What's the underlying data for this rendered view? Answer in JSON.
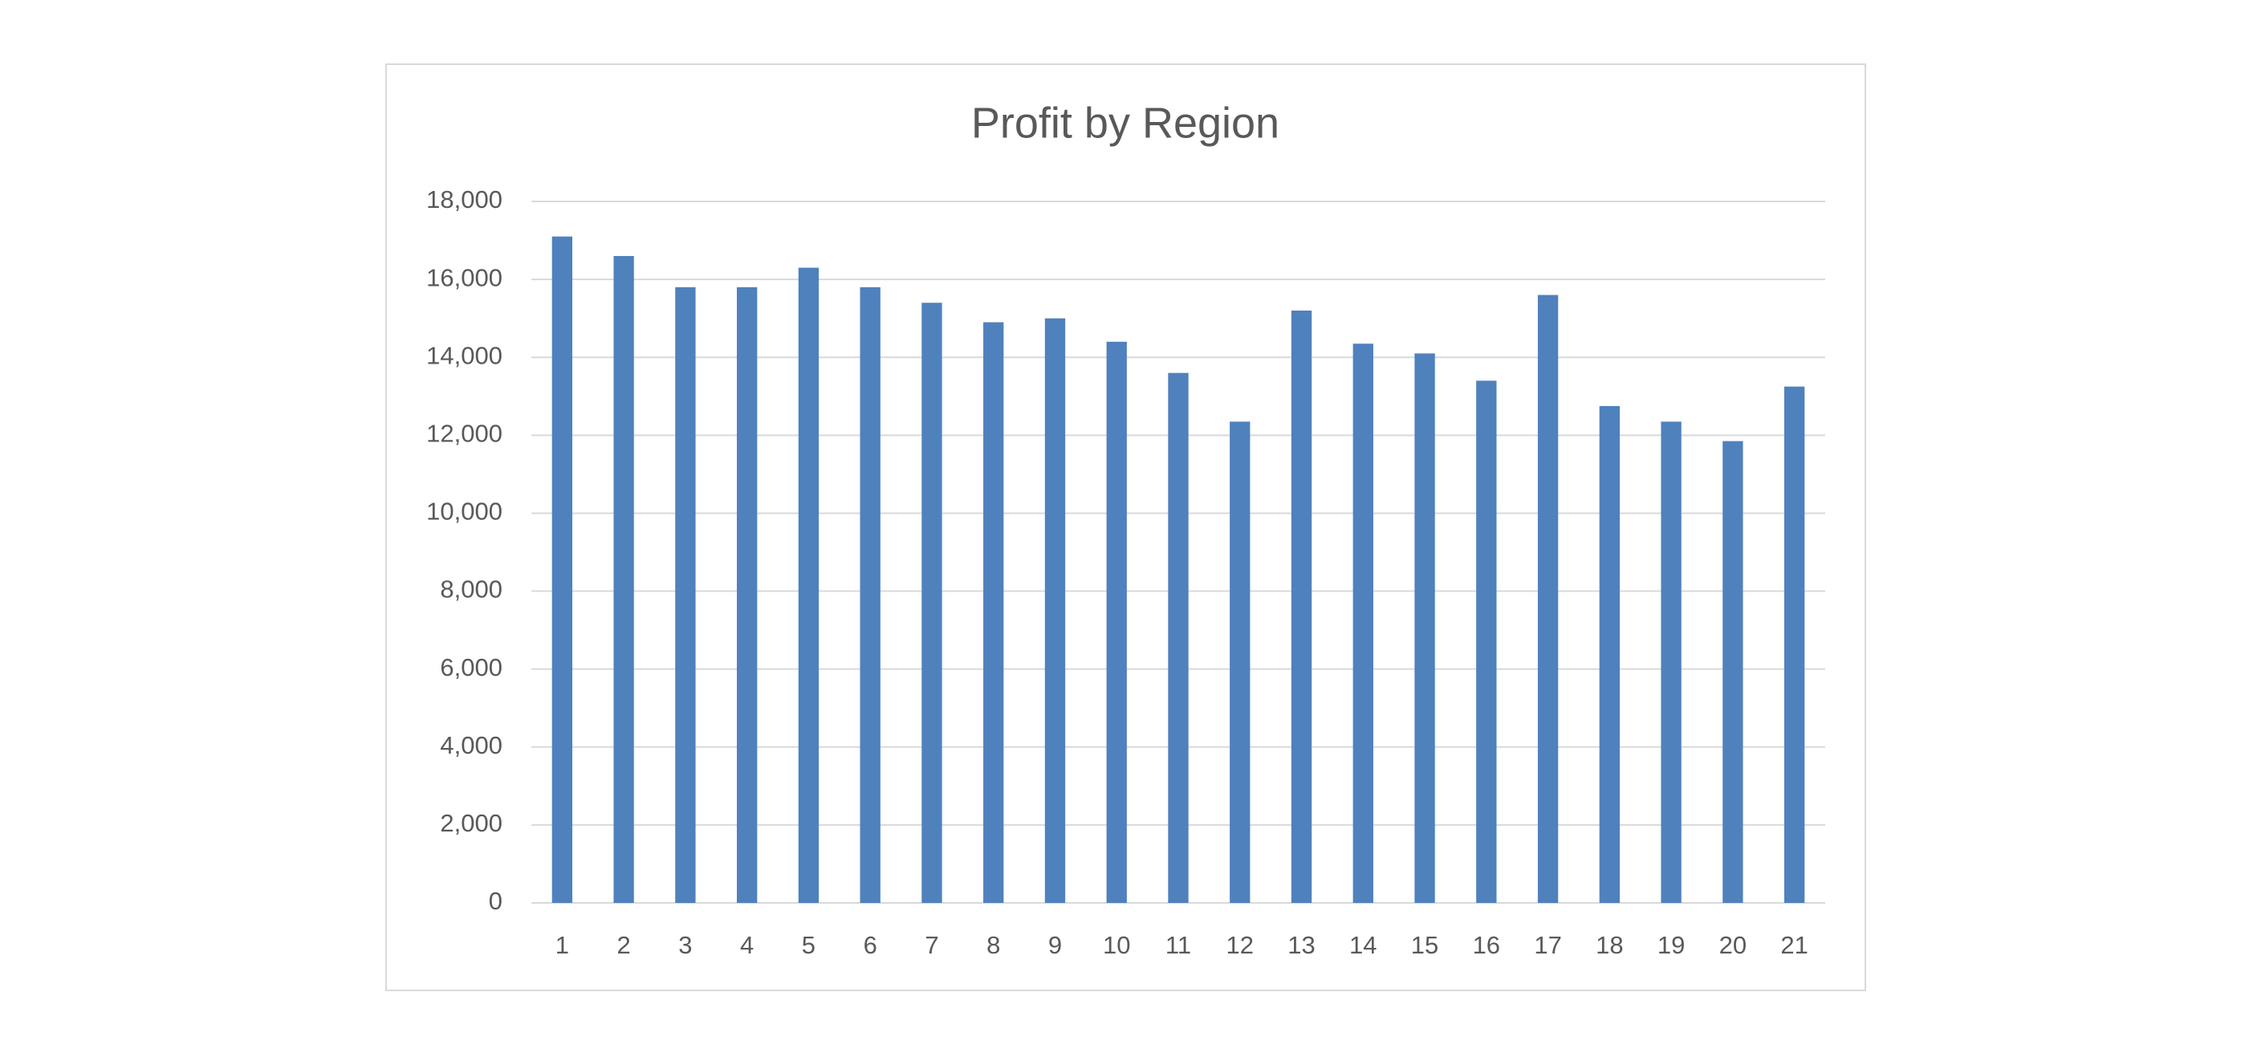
{
  "chart_data": {
    "type": "bar",
    "title": "Profit by Region",
    "categories": [
      "1",
      "2",
      "3",
      "4",
      "5",
      "6",
      "7",
      "8",
      "9",
      "10",
      "11",
      "12",
      "13",
      "14",
      "15",
      "16",
      "17",
      "18",
      "19",
      "20",
      "21"
    ],
    "values": [
      17100,
      16600,
      15800,
      15800,
      16300,
      15800,
      15400,
      14900,
      15000,
      14400,
      13600,
      12350,
      15200,
      14350,
      14100,
      13400,
      15600,
      12750,
      12350,
      11850,
      13250
    ],
    "color": "#4f81bd",
    "ylim": [
      0,
      18000
    ],
    "yticks": [
      0,
      {
        "value": 2000,
        "label": "2,000"
      },
      {
        "value": 4000,
        "label": "4,000"
      },
      {
        "value": 6000,
        "label": "6,000"
      },
      {
        "value": 8000,
        "label": "8,000"
      },
      {
        "value": 10000,
        "label": "10,000"
      },
      {
        "value": 12000,
        "label": "12,000"
      },
      {
        "value": 14000,
        "label": "14,000"
      },
      {
        "value": 16000,
        "label": "16,000"
      },
      {
        "value": 18000,
        "label": "18,000"
      }
    ],
    "grid": true
  }
}
